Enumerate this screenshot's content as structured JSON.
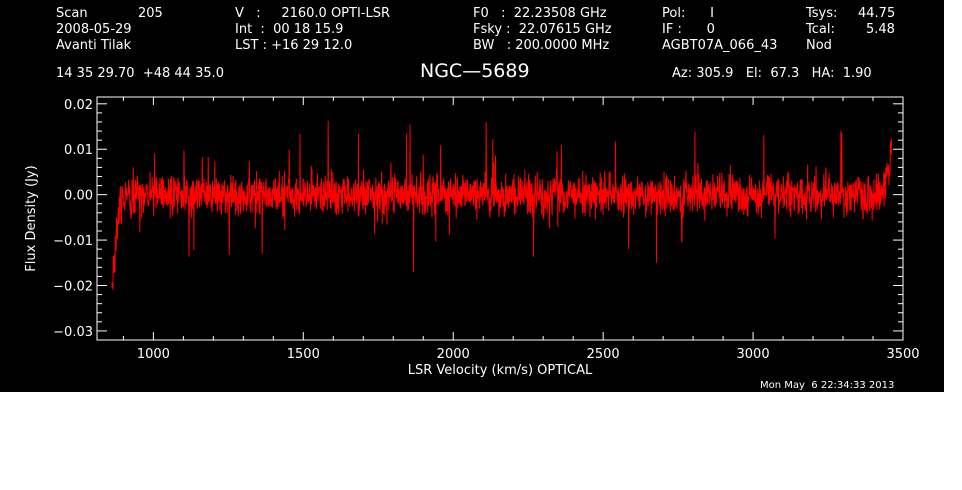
{
  "header": {
    "scan_label": "Scan",
    "scan_value": "205",
    "date": "2008-05-29",
    "observer": "Avanti Tilak",
    "v_line": "V   :     2160.0 OPTI-LSR",
    "int_line": "Int  :  00 18 15.9",
    "lst_line": "LST : +16 29 12.0",
    "f0_line": "F0   :  22.23508 GHz",
    "fsky_line": "Fsky :  22.07615 GHz",
    "bw_line": "BW   : 200.0000 MHz",
    "pol_line": "Pol:      I",
    "if_line": "IF :      0",
    "project": "AGBT07A_066_43",
    "tsys_label": "Tsys:",
    "tsys_value": "44.75",
    "tcal_label": "Tcal:",
    "tcal_value": "5.48",
    "mode": "Nod",
    "coords": "14 35 29.70  +48 44 35.0",
    "source": "NGC—5689",
    "az_el_ha": "Az: 305.9   El:  67.3   HA:  1.90",
    "timestamp": "Mon May  6 22:34:33 2013"
  },
  "chart_data": {
    "type": "line",
    "xlabel": "LSR Velocity (km/s) OPTICAL",
    "ylabel": "Flux Density (Jy)",
    "xlim": [
      812,
      3500
    ],
    "ylim": [
      -0.032,
      0.0215
    ],
    "x_ticks": [
      1000,
      1500,
      2000,
      2500,
      3000,
      3500
    ],
    "x_tick_labels": [
      "1000",
      "1500",
      "2000",
      "2500",
      "3000",
      "3500"
    ],
    "y_ticks": [
      0.02,
      0.01,
      0.0,
      -0.01,
      -0.02,
      -0.03
    ],
    "y_tick_labels": [
      "0.02",
      "0.01",
      "0.00",
      "−0.01",
      "−0.02",
      "−0.03"
    ],
    "grid": false,
    "series": [
      {
        "color": "#ff0000",
        "x_start": 862,
        "x_end": 3462,
        "noise_rms": 0.0045,
        "baseline": 0.0,
        "edge_low_min": -0.021,
        "edge_high_max": 0.015,
        "profile": [
          [
            862,
            -0.021
          ],
          [
            870,
            -0.013
          ],
          [
            880,
            -0.006
          ],
          [
            895,
            -0.001
          ],
          [
            920,
            0.0
          ],
          [
            1000,
            0.0
          ],
          [
            2000,
            0.0
          ],
          [
            3000,
            0.0
          ],
          [
            3420,
            0.0
          ],
          [
            3440,
            0.002
          ],
          [
            3455,
            0.006
          ],
          [
            3462,
            0.013
          ]
        ]
      }
    ]
  },
  "colors": {
    "background": "#000000",
    "foreground": "#ffffff",
    "series": "#ff0000"
  }
}
